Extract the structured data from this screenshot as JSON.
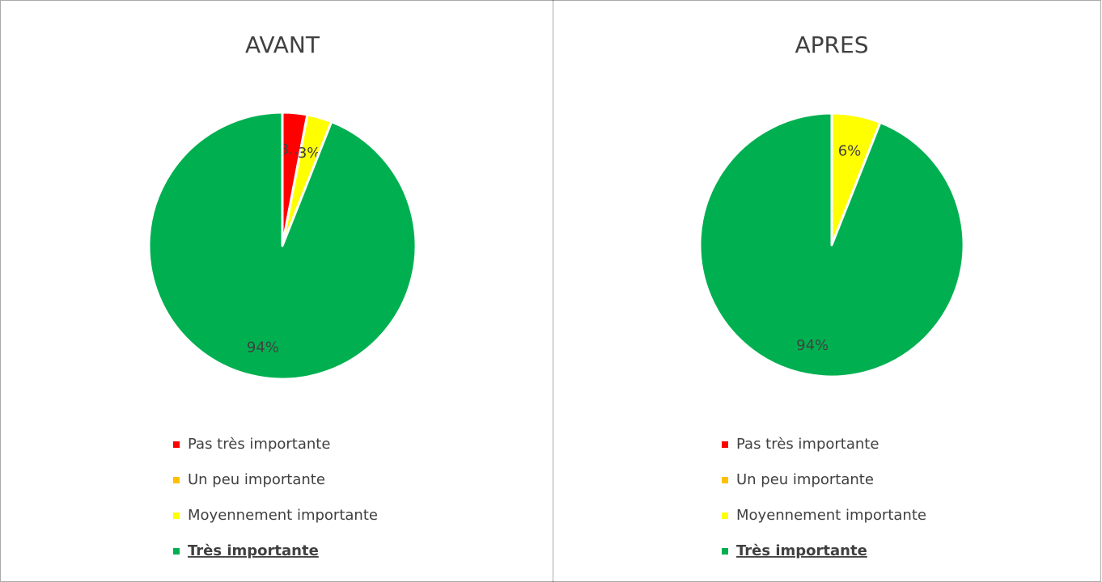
{
  "chart_data": [
    {
      "type": "pie",
      "title": "AVANT",
      "categories": [
        "Pas très importante",
        "Un peu importante",
        "Moyennement importante",
        "Très importante"
      ],
      "values": [
        3,
        0,
        3,
        94
      ],
      "value_labels": [
        "3…",
        null,
        "3%",
        "94%"
      ],
      "colors": [
        "#ff0000",
        "#ffc000",
        "#ffff00",
        "#00b050"
      ],
      "legend": "bottom"
    },
    {
      "type": "pie",
      "title": "APRES",
      "categories": [
        "Pas très importante",
        "Un peu importante",
        "Moyennement importante",
        "Très importante"
      ],
      "values": [
        0,
        0,
        6,
        94
      ],
      "value_labels": [
        null,
        null,
        "6%",
        "94%"
      ],
      "colors": [
        "#ff0000",
        "#ffc000",
        "#ffff00",
        "#00b050"
      ],
      "legend": "bottom"
    }
  ]
}
